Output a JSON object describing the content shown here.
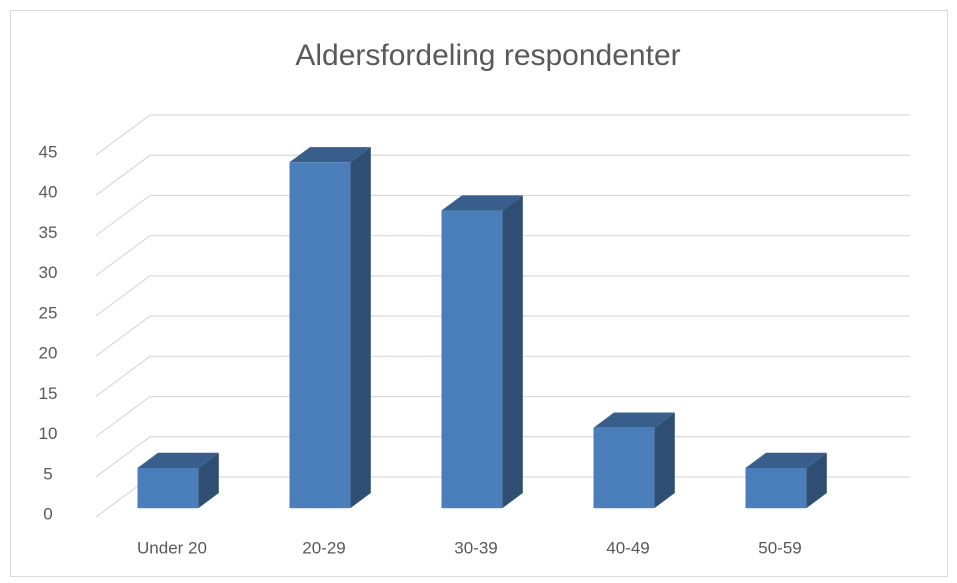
{
  "chart_data": {
    "type": "bar3d",
    "title": "Aldersfordeling respondenter",
    "categories": [
      "Under 20",
      "20-29",
      "30-39",
      "40-49",
      "50-59"
    ],
    "values": [
      5,
      43,
      37,
      10,
      5
    ],
    "color": "#4a7ebb",
    "ylim": [
      0,
      45
    ],
    "yticks": [
      0,
      5,
      10,
      15,
      20,
      25,
      30,
      35,
      40,
      45
    ],
    "grid": true
  }
}
